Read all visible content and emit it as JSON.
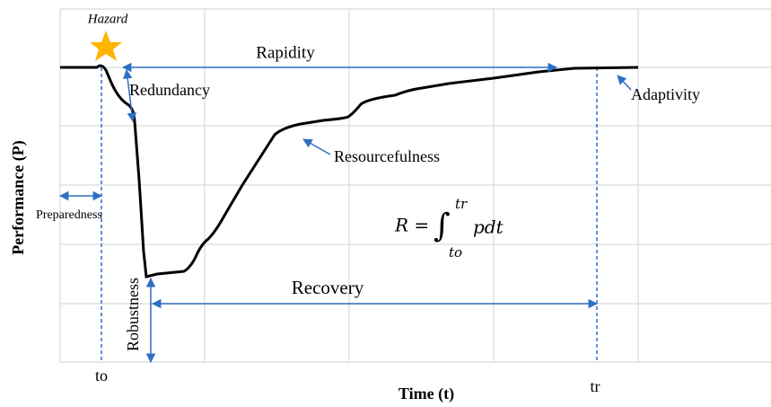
{
  "diagram": {
    "y_axis_label": "Performance (P)",
    "x_axis_label": "Time (t)",
    "hazard": "Hazard",
    "rapidity": "Rapidity",
    "redundancy": "Redundancy",
    "adaptivity": "Adaptivity",
    "resourcefulness": "Resourcefulness",
    "preparedness": "Preparedness",
    "robustness": "Robustness",
    "recovery": "Recovery",
    "t0": "to",
    "tr": "tr",
    "formula": {
      "lhs": "R =",
      "integral": "∫",
      "upper": "tr",
      "lower": "to",
      "integrand": "pdt"
    }
  }
}
